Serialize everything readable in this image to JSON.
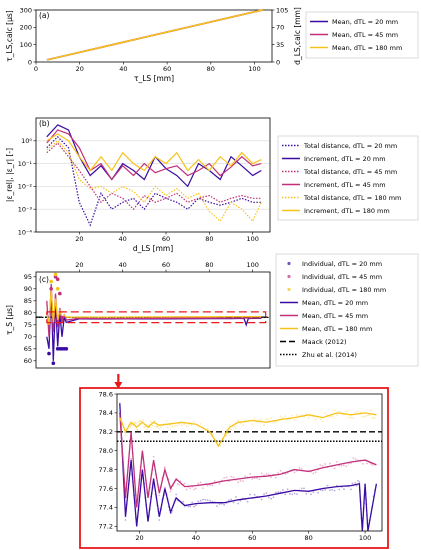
{
  "colors": {
    "d20": "#3a0ca3",
    "d45": "#c2307a",
    "d180": "#f7c31a",
    "red": "#e8191b"
  },
  "chart_data": [
    {
      "type": "line",
      "panel_label": "(a)",
      "xlabel": "τ_LS [mm]",
      "ylabel": "τ_LS,calc [μs]",
      "y2label": "d_LS,calc [mm]",
      "xlim": [
        0,
        108
      ],
      "ylim": [
        0,
        300
      ],
      "y2lim": [
        0,
        105
      ],
      "xticks": [
        "0",
        "20",
        "40",
        "60",
        "80",
        "100"
      ],
      "yticks": [
        "0",
        "100",
        "200",
        "300"
      ],
      "y2ticks": [
        "0",
        "35",
        "70",
        "105"
      ],
      "series": [
        {
          "name": "Mean, dTL = 20 mm",
          "color": "d20",
          "x": [
            5,
            104
          ],
          "y": [
            12,
            301
          ]
        },
        {
          "name": "Mean, dTL = 45 mm",
          "color": "d45",
          "x": [
            5,
            104
          ],
          "y": [
            12,
            301
          ]
        },
        {
          "name": "Mean, dTL = 180 mm",
          "color": "d180",
          "x": [
            5,
            104
          ],
          "y": [
            12,
            301
          ]
        }
      ],
      "legend": [
        "Mean, dTL = 20 mm",
        "Mean, dTL = 45 mm",
        "Mean, dTL = 180 mm"
      ]
    },
    {
      "type": "line",
      "panel_label": "(b)",
      "yscale": "log",
      "xlabel": "d_LS [mm]",
      "ylabel": "|ε_rel|, |ε_r| [-]",
      "xlim": [
        0,
        108
      ],
      "ylim": [
        0.0001,
        10
      ],
      "xticks": [
        "20",
        "40",
        "60",
        "80",
        "100"
      ],
      "yticks": [
        "10⁻⁴",
        "10⁻³",
        "10⁻²",
        "10⁻¹",
        "10⁰"
      ],
      "legend": [
        "Total distance, dTL = 20 mm",
        "Increment, dTL = 20 mm",
        "Total distance, dTL = 45 mm",
        "Increment, dTL = 45 mm",
        "Total distance, dTL = 180 mm",
        "Increment, dTL = 180 mm"
      ],
      "series": [
        {
          "name": "Total distance, dTL = 20 mm",
          "color": "d20",
          "style": "dotted",
          "x": [
            5,
            10,
            15,
            20,
            25,
            30,
            35,
            40,
            45,
            50,
            55,
            60,
            65,
            70,
            75,
            80,
            85,
            90,
            95,
            100,
            104
          ],
          "y": [
            0.5,
            1.5,
            0.5,
            0.002,
            0.0002,
            0.005,
            0.001,
            0.002,
            0.003,
            0.001,
            0.005,
            0.003,
            0.002,
            0.001,
            0.003,
            0.002,
            0.0015,
            0.002,
            0.003,
            0.002,
            0.002
          ]
        },
        {
          "name": "Increment, dTL = 20 mm",
          "color": "d20",
          "style": "solid",
          "x": [
            5,
            10,
            15,
            20,
            25,
            30,
            35,
            40,
            45,
            50,
            55,
            60,
            65,
            70,
            75,
            80,
            85,
            90,
            95,
            100,
            104
          ],
          "y": [
            1.5,
            5,
            3,
            0.2,
            0.03,
            0.08,
            0.02,
            0.1,
            0.05,
            0.02,
            0.2,
            0.06,
            0.03,
            0.01,
            0.1,
            0.05,
            0.02,
            0.2,
            0.08,
            0.03,
            0.05
          ]
        },
        {
          "name": "Total distance, dTL = 45 mm",
          "color": "d45",
          "style": "dotted",
          "x": [
            5,
            10,
            15,
            20,
            25,
            30,
            35,
            40,
            45,
            50,
            55,
            60,
            65,
            70,
            75,
            80,
            85,
            90,
            95,
            100,
            104
          ],
          "y": [
            0.3,
            0.8,
            0.2,
            0.05,
            0.01,
            0.002,
            0.005,
            0.003,
            0.001,
            0.004,
            0.002,
            0.003,
            0.005,
            0.002,
            0.003,
            0.004,
            0.002,
            0.003,
            0.004,
            0.003,
            0.003
          ]
        },
        {
          "name": "Increment, dTL = 45 mm",
          "color": "d45",
          "style": "solid",
          "x": [
            5,
            10,
            15,
            20,
            25,
            30,
            35,
            40,
            45,
            50,
            55,
            60,
            65,
            70,
            75,
            80,
            85,
            90,
            95,
            100,
            104
          ],
          "y": [
            0.8,
            3,
            2,
            0.5,
            0.05,
            0.1,
            0.02,
            0.08,
            0.03,
            0.1,
            0.04,
            0.06,
            0.08,
            0.03,
            0.05,
            0.1,
            0.03,
            0.07,
            0.2,
            0.08,
            0.1
          ]
        },
        {
          "name": "Total distance, dTL = 180 mm",
          "color": "d180",
          "style": "dotted",
          "x": [
            5,
            10,
            15,
            20,
            25,
            30,
            35,
            40,
            45,
            50,
            55,
            60,
            65,
            70,
            75,
            80,
            85,
            90,
            95,
            100,
            104
          ],
          "y": [
            0.4,
            1,
            0.3,
            0.02,
            0.008,
            0.01,
            0.005,
            0.01,
            0.006,
            0.002,
            0.01,
            0.004,
            0.008,
            0.003,
            0.005,
            0.0008,
            0.0003,
            0.002,
            0.001,
            0.0003,
            0.002
          ]
        },
        {
          "name": "Increment, dTL = 180 mm",
          "color": "d180",
          "style": "solid",
          "x": [
            5,
            10,
            15,
            20,
            25,
            30,
            35,
            40,
            45,
            50,
            55,
            60,
            65,
            70,
            75,
            80,
            85,
            90,
            95,
            100,
            104
          ],
          "y": [
            1,
            2,
            1,
            0.2,
            0.05,
            0.2,
            0.05,
            0.3,
            0.1,
            0.05,
            0.2,
            0.1,
            0.3,
            0.05,
            0.15,
            0.05,
            0.2,
            0.08,
            0.3,
            0.1,
            0.15
          ]
        }
      ]
    },
    {
      "type": "line",
      "panel_label": "(c)",
      "xlabel": "",
      "ylabel": "τ_S [μs]",
      "xlim": [
        0,
        108
      ],
      "ylim": [
        57,
        97
      ],
      "xticks": [
        "20",
        "40",
        "60",
        "80",
        "100"
      ],
      "yticks": [
        "60",
        "65",
        "70",
        "75",
        "80",
        "85",
        "90",
        "95"
      ],
      "legend": [
        "Individual, dTL = 20 mm",
        "Individual, dTL = 45 mm",
        "Individual, dTL = 180 mm",
        "Mean, dTL = 20 mm",
        "Mean, dTL = 45 mm",
        "Mean, dTL = 180 mm",
        "Maack (2012)",
        "Zhu et al. (2014)"
      ],
      "references": [
        {
          "name": "Maack (2012)",
          "value": 78.2,
          "style": "dashed"
        },
        {
          "name": "Zhu et al. (2014)",
          "value": 78.1,
          "style": "dotted"
        }
      ],
      "series": [
        {
          "name": "Mean, dTL = 20 mm",
          "color": "d20",
          "x": [
            5,
            6,
            7,
            8,
            9,
            10,
            11,
            12,
            13,
            14,
            20,
            30,
            40,
            50,
            60,
            70,
            80,
            90,
            96,
            97,
            98,
            100,
            104
          ],
          "y": [
            70,
            65,
            90,
            60,
            85,
            66,
            80,
            70,
            78,
            76,
            77.5,
            77.4,
            77.45,
            77.45,
            77.5,
            77.55,
            77.6,
            77.6,
            77.65,
            75,
            77.6,
            77.65,
            77.65
          ]
        },
        {
          "name": "Mean, dTL = 45 mm",
          "color": "d45",
          "x": [
            5,
            6,
            7,
            8,
            9,
            10,
            11,
            12,
            13,
            14,
            20,
            30,
            40,
            50,
            60,
            70,
            80,
            90,
            100,
            104
          ],
          "y": [
            85,
            70,
            92,
            72,
            88,
            74,
            82,
            76,
            79,
            77,
            77.7,
            77.6,
            77.6,
            77.65,
            77.7,
            77.75,
            77.8,
            77.8,
            77.85,
            77.85
          ]
        },
        {
          "name": "Mean, dTL = 180 mm",
          "color": "d180",
          "x": [
            5,
            6,
            7,
            8,
            9,
            10,
            11,
            12,
            13,
            14,
            20,
            30,
            40,
            50,
            60,
            70,
            80,
            90,
            100,
            104
          ],
          "y": [
            80,
            75,
            90,
            76,
            86,
            77,
            81,
            78,
            79,
            78.2,
            78.25,
            78.2,
            78.25,
            78.3,
            78.3,
            78.35,
            78.35,
            78.4,
            78.4,
            78.4
          ]
        }
      ],
      "individual_points": [
        {
          "name": "Individual, dTL = 20 mm",
          "color": "d20",
          "x": [
            6,
            8,
            10,
            11,
            12,
            13,
            14
          ],
          "y": [
            63,
            59,
            65,
            65,
            65,
            65,
            65
          ]
        },
        {
          "name": "Individual, dTL = 45 mm",
          "color": "d45",
          "x": [
            7,
            9,
            10,
            11,
            12
          ],
          "y": [
            90,
            95,
            94,
            88,
            78
          ]
        },
        {
          "name": "Individual, dTL = 180 mm",
          "color": "d180",
          "x": [
            7,
            9,
            10
          ],
          "y": [
            93,
            96,
            90
          ]
        }
      ]
    },
    {
      "type": "line",
      "panel_label": "inset",
      "xlim": [
        12,
        106
      ],
      "ylim": [
        77.15,
        78.6
      ],
      "xticks": [
        "20",
        "40",
        "60",
        "80",
        "100"
      ],
      "yticks": [
        "77.2",
        "77.4",
        "77.6",
        "77.8",
        "78.0",
        "78.2",
        "78.4",
        "78.6"
      ],
      "references": [
        {
          "name": "Maack (2012)",
          "value": 78.2,
          "style": "dashed"
        },
        {
          "name": "Zhu et al. (2014)",
          "value": 78.1,
          "style": "dotted"
        }
      ],
      "series": [
        {
          "name": "Mean, dTL = 20 mm",
          "color": "d20",
          "x": [
            13,
            15,
            17,
            19,
            21,
            23,
            25,
            27,
            29,
            31,
            33,
            36,
            40,
            45,
            50,
            55,
            60,
            65,
            70,
            75,
            80,
            85,
            90,
            95,
            98,
            99,
            100,
            101,
            104
          ],
          "y": [
            78.5,
            77.3,
            77.9,
            77.2,
            77.8,
            77.25,
            77.7,
            77.3,
            77.6,
            77.35,
            77.5,
            77.42,
            77.44,
            77.45,
            77.45,
            77.48,
            77.5,
            77.52,
            77.55,
            77.58,
            77.57,
            77.6,
            77.62,
            77.63,
            77.65,
            77.15,
            77.65,
            77.15,
            77.65
          ]
        },
        {
          "name": "Mean, dTL = 45 mm",
          "color": "d45",
          "x": [
            13,
            15,
            17,
            19,
            21,
            23,
            25,
            27,
            29,
            31,
            33,
            36,
            40,
            45,
            50,
            55,
            60,
            65,
            70,
            75,
            80,
            85,
            90,
            95,
            100,
            104
          ],
          "y": [
            78.4,
            77.5,
            78.2,
            77.4,
            78.0,
            77.5,
            77.9,
            77.55,
            77.8,
            77.6,
            77.7,
            77.62,
            77.63,
            77.65,
            77.68,
            77.7,
            77.72,
            77.73,
            77.75,
            77.8,
            77.78,
            77.82,
            77.85,
            77.88,
            77.9,
            77.85
          ]
        },
        {
          "name": "Mean, dTL = 180 mm",
          "color": "d180",
          "x": [
            13,
            15,
            17,
            19,
            21,
            23,
            25,
            27,
            30,
            35,
            40,
            45,
            48,
            50,
            52,
            55,
            60,
            65,
            70,
            75,
            80,
            85,
            90,
            95,
            100,
            104
          ],
          "y": [
            78.35,
            78.2,
            78.3,
            78.25,
            78.3,
            78.25,
            78.3,
            78.27,
            78.28,
            78.3,
            78.28,
            78.2,
            78.05,
            78.15,
            78.25,
            78.3,
            78.32,
            78.3,
            78.33,
            78.35,
            78.38,
            78.35,
            78.4,
            78.38,
            78.4,
            78.38
          ]
        }
      ]
    }
  ]
}
